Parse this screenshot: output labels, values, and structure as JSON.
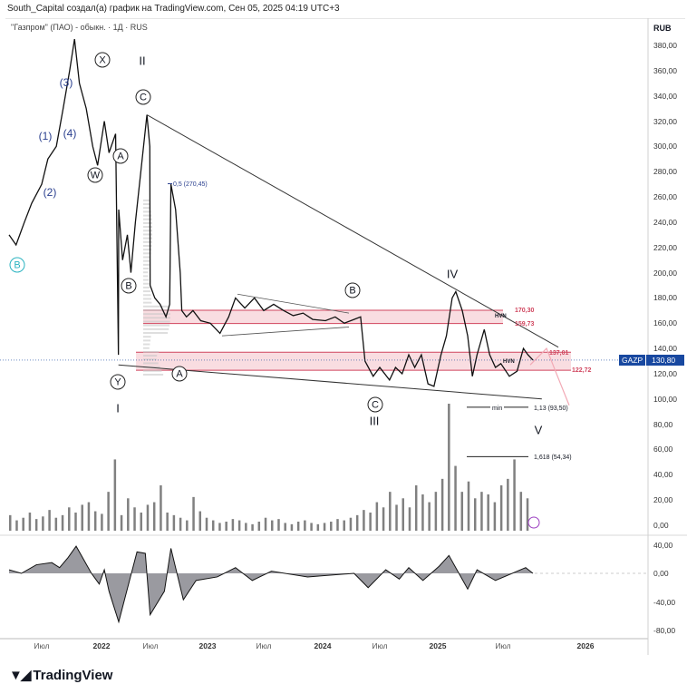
{
  "caption": "South_Capital создал(а) график на TradingView.com, Сен 05, 2025 04:19 UTC+3",
  "symbol_title": "\"Газпром\" (ПАО) - обыкн. · 1Д · RUS",
  "currency": "RUB",
  "ticker_tag": "GAZP",
  "last_price_label": "130,80",
  "logo_text": "TradingView",
  "colors": {
    "price_line": "#111111",
    "zone": "#f7d5da",
    "zone_line": "#d0455e",
    "axis_badge": "#1848a0",
    "wave_blue": "#2a3f8f",
    "wave_cyan": "#2bb3c0",
    "osc_fill": "#9a9aa0"
  },
  "wave_labels": {
    "x": "X",
    "c_top": "C",
    "ii": "II",
    "w": "W",
    "a1": "A",
    "b1": "B",
    "y": "Y",
    "i": "I",
    "n3": "(3)",
    "n1": "(1)",
    "n4": "(4)",
    "n2": "(2)",
    "b_cyan": "B",
    "a2": "A",
    "b2": "B",
    "c2": "C",
    "iii": "III",
    "iv": "IV",
    "v": "V"
  },
  "annotations": {
    "fib_05": "0,5 (270,45)",
    "zone_top_hi": "170,30",
    "zone_top_lo": "159,73",
    "zone_bot_hi": "137,01",
    "zone_bot_lo": "122,72",
    "hvn1": "HVN",
    "hvn2": "HVN",
    "min_label": "min",
    "target_113": "1,13 (93,50)",
    "target_1618": "1,618 (54,34)"
  },
  "chart_data": [
    {
      "type": "line",
      "title": "",
      "ylabel": "RUB",
      "ylim": [
        0,
        390
      ],
      "y_ticks": [
        "380,00",
        "360,00",
        "340,00",
        "320,00",
        "300,00",
        "280,00",
        "260,00",
        "240,00",
        "220,00",
        "200,00",
        "180,00",
        "160,00",
        "140,00",
        "120,00",
        "100,00",
        "80,00",
        "60,00",
        "40,00",
        "20,00",
        "0,00"
      ],
      "x_ticks": [
        "Июл",
        "2022",
        "Июл",
        "2023",
        "Июл",
        "2024",
        "Июл",
        "2025",
        "Июл",
        "2026"
      ],
      "series": [
        {
          "values": [
            [
              "2021-03-25",
              230
            ],
            [
              "2021-04-15",
              222
            ],
            [
              "2021-05-10",
              240
            ],
            [
              "2021-06-01",
              255
            ],
            [
              "2021-07-01",
              270
            ],
            [
              "2021-07-20",
              290
            ],
            [
              "2021-08-15",
              300
            ],
            [
              "2021-09-05",
              330
            ],
            [
              "2021-09-25",
              360
            ],
            [
              "2021-10-10",
              385
            ],
            [
              "2021-10-25",
              350
            ],
            [
              "2021-11-15",
              330
            ],
            [
              "2021-12-05",
              300
            ],
            [
              "2021-12-20",
              285
            ],
            [
              "2022-01-10",
              320
            ],
            [
              "2022-01-25",
              295
            ],
            [
              "2022-02-15",
              310
            ],
            [
              "2022-02-24",
              135
            ],
            [
              "2022-03-24",
              250
            ],
            [
              "2022-04-05",
              210
            ],
            [
              "2022-04-20",
              230
            ],
            [
              "2022-05-01",
              200
            ],
            [
              "2022-05-15",
              240
            ],
            [
              "2022-06-01",
              280
            ],
            [
              "2022-06-20",
              325
            ],
            [
              "2022-06-29",
              300
            ],
            [
              "2022-06-30",
              190
            ],
            [
              "2022-07-15",
              180
            ],
            [
              "2022-08-01",
              175
            ],
            [
              "2022-08-20",
              165
            ],
            [
              "2022-09-01",
              175
            ],
            [
              "2022-09-05",
              270
            ],
            [
              "2022-09-20",
              250
            ],
            [
              "2022-10-05",
              200
            ],
            [
              "2022-10-10",
              170
            ],
            [
              "2022-10-25",
              165
            ],
            [
              "2022-11-15",
              170
            ],
            [
              "2022-12-10",
              162
            ],
            [
              "2023-01-10",
              160
            ],
            [
              "2023-02-10",
              152
            ],
            [
              "2023-03-10",
              165
            ],
            [
              "2023-04-01",
              180
            ],
            [
              "2023-05-01",
              172
            ],
            [
              "2023-06-01",
              180
            ],
            [
              "2023-07-01",
              170
            ],
            [
              "2023-08-01",
              175
            ],
            [
              "2023-09-01",
              170
            ],
            [
              "2023-10-01",
              166
            ],
            [
              "2023-11-01",
              168
            ],
            [
              "2023-12-01",
              163
            ],
            [
              "2024-01-10",
              162
            ],
            [
              "2024-02-10",
              165
            ],
            [
              "2024-03-10",
              160
            ],
            [
              "2024-04-10",
              163
            ],
            [
              "2024-05-01",
              165
            ],
            [
              "2024-05-15",
              130
            ],
            [
              "2024-06-10",
              118
            ],
            [
              "2024-07-01",
              125
            ],
            [
              "2024-08-01",
              115
            ],
            [
              "2024-08-20",
              125
            ],
            [
              "2024-09-10",
              120
            ],
            [
              "2024-10-01",
              135
            ],
            [
              "2024-10-20",
              125
            ],
            [
              "2024-11-10",
              135
            ],
            [
              "2024-12-01",
              112
            ],
            [
              "2024-12-20",
              110
            ],
            [
              "2025-01-10",
              135
            ],
            [
              "2025-01-25",
              150
            ],
            [
              "2025-02-10",
              180
            ],
            [
              "2025-02-20",
              185
            ],
            [
              "2025-03-10",
              170
            ],
            [
              "2025-03-25",
              150
            ],
            [
              "2025-04-07",
              118
            ],
            [
              "2025-04-20",
              135
            ],
            [
              "2025-05-10",
              155
            ],
            [
              "2025-05-25",
              135
            ],
            [
              "2025-06-10",
              125
            ],
            [
              "2025-06-25",
              128
            ],
            [
              "2025-07-15",
              118
            ],
            [
              "2025-08-01",
              122
            ],
            [
              "2025-08-15",
              140
            ],
            [
              "2025-08-25",
              135
            ],
            [
              "2025-09-05",
              130.8
            ]
          ]
        }
      ],
      "zones": [
        [
          159.73,
          170.3
        ],
        [
          122.72,
          137.01
        ]
      ],
      "trendlines": [
        [
          [
            "2022-06-20",
            325
          ],
          [
            "2025-11-01",
            141
          ]
        ],
        [
          [
            "2022-02-24",
            127
          ],
          [
            "2025-09-25",
            100
          ]
        ]
      ],
      "levels": [
        {
          "label": "1,13",
          "value": 93.5
        },
        {
          "label": "1,618",
          "value": 54.34
        }
      ]
    },
    {
      "type": "bar",
      "title": "",
      "values": [
        12,
        8,
        10,
        14,
        9,
        11,
        16,
        10,
        12,
        18,
        14,
        20,
        22,
        15,
        13,
        30,
        55,
        12,
        25,
        18,
        14,
        20,
        22,
        35,
        14,
        12,
        10,
        8,
        26,
        15,
        10,
        8,
        6,
        7,
        9,
        8,
        6,
        5,
        7,
        10,
        8,
        9,
        6,
        5,
        7,
        8,
        6,
        5,
        6,
        7,
        9,
        8,
        10,
        12,
        16,
        14,
        22,
        18,
        30,
        20,
        25,
        18,
        35,
        28,
        22,
        30,
        40,
        98,
        50,
        30,
        38,
        25,
        30,
        28,
        22,
        35,
        40,
        55,
        30,
        25
      ]
    },
    {
      "type": "area",
      "title": "",
      "ylim": [
        -90,
        50
      ],
      "y_ticks": [
        "40,00",
        "0,00",
        "-40,00",
        "-80,00"
      ],
      "values": [
        [
          "2021-03-25",
          5
        ],
        [
          "2021-05-01",
          0
        ],
        [
          "2021-06-15",
          12
        ],
        [
          "2021-08-01",
          15
        ],
        [
          "2021-08-25",
          8
        ],
        [
          "2021-09-20",
          22
        ],
        [
          "2021-10-15",
          38
        ],
        [
          "2021-12-01",
          0
        ],
        [
          "2021-12-25",
          -15
        ],
        [
          "2022-01-10",
          5
        ],
        [
          "2022-01-25",
          -25
        ],
        [
          "2022-03-24",
          -68
        ],
        [
          "2022-04-15",
          -30
        ],
        [
          "2022-05-20",
          30
        ],
        [
          "2022-06-15",
          28
        ],
        [
          "2022-06-30",
          -58
        ],
        [
          "2022-08-15",
          -25
        ],
        [
          "2022-09-05",
          35
        ],
        [
          "2022-10-15",
          -37
        ],
        [
          "2022-11-25",
          -10
        ],
        [
          "2023-02-01",
          -5
        ],
        [
          "2023-04-01",
          8
        ],
        [
          "2023-05-25",
          -10
        ],
        [
          "2023-07-25",
          3
        ],
        [
          "2023-11-15",
          -5
        ],
        [
          "2024-04-10",
          0
        ],
        [
          "2024-05-25",
          -20
        ],
        [
          "2024-07-20",
          5
        ],
        [
          "2024-09-01",
          -8
        ],
        [
          "2024-10-01",
          8
        ],
        [
          "2024-11-15",
          -10
        ],
        [
          "2025-01-05",
          10
        ],
        [
          "2025-02-01",
          25
        ],
        [
          "2025-03-25",
          -22
        ],
        [
          "2025-04-20",
          5
        ],
        [
          "2025-06-10",
          -10
        ],
        [
          "2025-08-20",
          8
        ],
        [
          "2025-09-05",
          0
        ]
      ]
    }
  ]
}
